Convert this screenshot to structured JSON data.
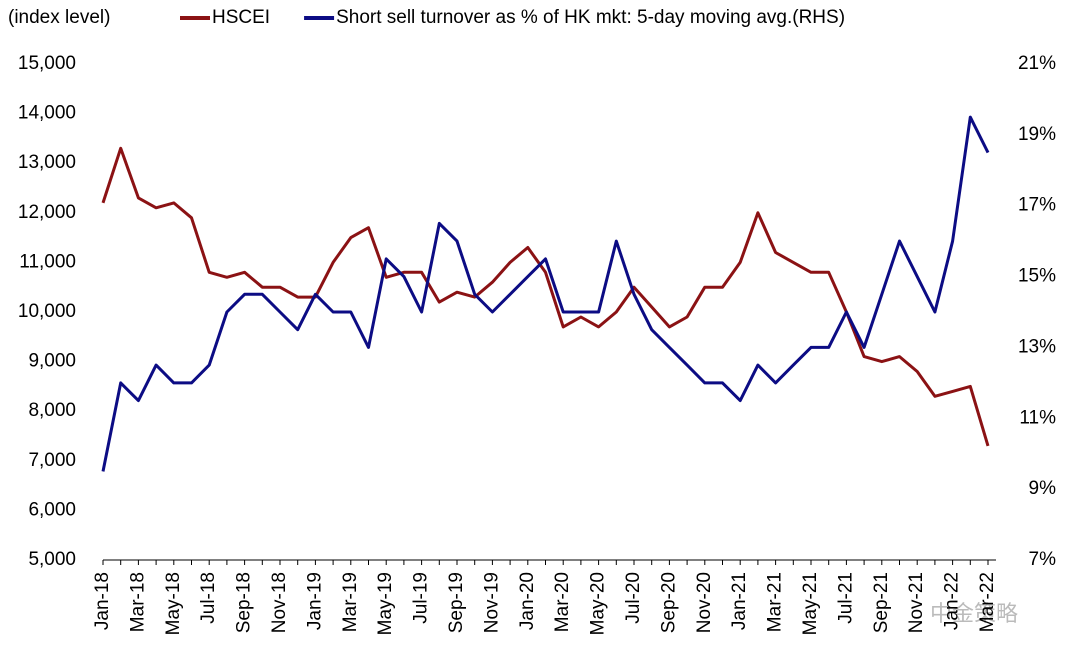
{
  "chart_data": {
    "type": "line",
    "y_label": "(index level)",
    "watermark": "中金策略",
    "categories": [
      "Jan-18",
      null,
      "Mar-18",
      null,
      "May-18",
      null,
      "Jul-18",
      null,
      "Sep-18",
      null,
      "Nov-18",
      null,
      "Jan-19",
      null,
      "Mar-19",
      null,
      "May-19",
      null,
      "Jul-19",
      null,
      "Sep-19",
      null,
      "Nov-19",
      null,
      "Jan-20",
      null,
      "Mar-20",
      null,
      "May-20",
      null,
      "Jul-20",
      null,
      "Sep-20",
      null,
      "Nov-20",
      null,
      "Jan-21",
      null,
      "Mar-21",
      null,
      "May-21",
      null,
      "Jul-21",
      null,
      "Sep-21",
      null,
      "Nov-21",
      null,
      "Jan-22",
      null,
      "Mar-22"
    ],
    "series": [
      {
        "name": "HSCEI",
        "color": "#8b1214",
        "axis": "y",
        "values": [
          12200,
          13300,
          12300,
          12100,
          12200,
          11900,
          10800,
          10700,
          10800,
          10500,
          10500,
          10300,
          10300,
          11000,
          11500,
          11700,
          10700,
          10800,
          10800,
          10200,
          10400,
          10300,
          10600,
          11000,
          11300,
          10800,
          9700,
          9900,
          9700,
          10000,
          10500,
          10100,
          9700,
          9900,
          10500,
          10500,
          11000,
          12000,
          11200,
          11000,
          10800,
          10800,
          10000,
          9100,
          9000,
          9100,
          8800,
          8300,
          8400,
          8500,
          7300
        ]
      },
      {
        "name": "Short sell turnover as % of HK mkt: 5-day moving avg.(RHS)",
        "color": "#0c0c84",
        "axis": "y2",
        "values": [
          9.5,
          12,
          11.5,
          12.5,
          12,
          12,
          12.5,
          14,
          14.5,
          14.5,
          14,
          13.5,
          14.5,
          14,
          14,
          13,
          15.5,
          15,
          14,
          16.5,
          16,
          14.5,
          14,
          14.5,
          15,
          15.5,
          14,
          14,
          14,
          16,
          14.5,
          13.5,
          13,
          12.5,
          12,
          12,
          11.5,
          12.5,
          12,
          12.5,
          13,
          13,
          14,
          13,
          14.5,
          16,
          15,
          14,
          16,
          19.5,
          18.5
        ]
      }
    ],
    "ylim": [
      5000,
      15000
    ],
    "yticks": [
      {
        "value": 5000,
        "label": "5,000"
      },
      {
        "value": 6000,
        "label": "6,000"
      },
      {
        "value": 7000,
        "label": "7,000"
      },
      {
        "value": 8000,
        "label": "8,000"
      },
      {
        "value": 9000,
        "label": "9,000"
      },
      {
        "value": 10000,
        "label": "10,000"
      },
      {
        "value": 11000,
        "label": "11,000"
      },
      {
        "value": 12000,
        "label": "12,000"
      },
      {
        "value": 13000,
        "label": "13,000"
      },
      {
        "value": 14000,
        "label": "14,000"
      },
      {
        "value": 15000,
        "label": "15,000"
      }
    ],
    "y2lim": [
      7,
      21
    ],
    "y2ticks": [
      {
        "value": 7,
        "label": "7%"
      },
      {
        "value": 9,
        "label": "9%"
      },
      {
        "value": 11,
        "label": "11%"
      },
      {
        "value": 13,
        "label": "13%"
      },
      {
        "value": 15,
        "label": "15%"
      },
      {
        "value": 17,
        "label": "17%"
      },
      {
        "value": 19,
        "label": "19%"
      },
      {
        "value": 21,
        "label": "21%"
      }
    ],
    "grid": false
  }
}
